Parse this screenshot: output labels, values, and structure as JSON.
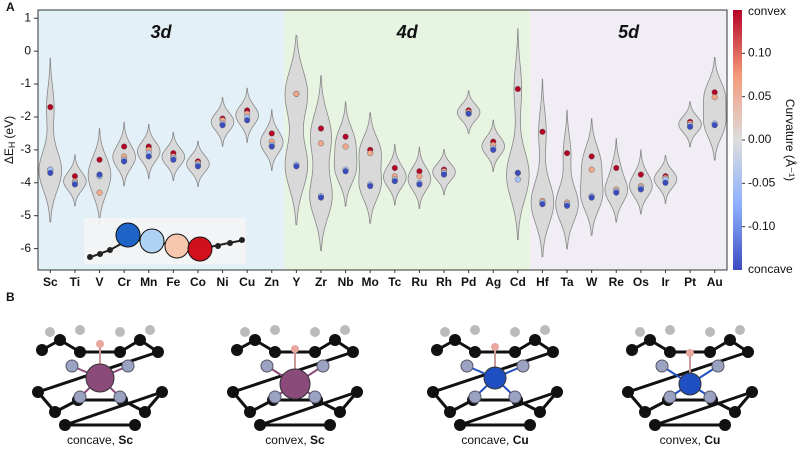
{
  "chart_data": {
    "type": "violin",
    "panel_label": "A",
    "ylabel": {
      "symbol": "ΔE",
      "subscript": "H",
      "unit": "(eV)"
    },
    "ylim": [
      -6.65,
      1.25
    ],
    "yticks": [
      -6,
      -5,
      -4,
      -3,
      -2,
      -1,
      0,
      1
    ],
    "groups": [
      {
        "label": "3d",
        "label_color": "#3a77c4",
        "color": "#e4f0f8",
        "categories": [
          "Sc",
          "Ti",
          "V",
          "Cr",
          "Mn",
          "Fe",
          "Co",
          "Ni",
          "Cu",
          "Zn"
        ]
      },
      {
        "label": "4d",
        "label_color": "#4b7d68",
        "color": "#e7f4e2",
        "categories": [
          "Y",
          "Zr",
          "Nb",
          "Mo",
          "Tc",
          "Ru",
          "Rh",
          "Pd",
          "Ag",
          "Cd"
        ]
      },
      {
        "label": "5d",
        "label_color": "#8c1f4f",
        "color": "#f1edf5",
        "categories": [
          "Hf",
          "Ta",
          "W",
          "Re",
          "Os",
          "Ir",
          "Pt",
          "Au"
        ]
      }
    ],
    "violin_color": "#d9d9d9",
    "series": [
      {
        "color": "#b40426",
        "values": [
          -1.7,
          -3.8,
          -3.3,
          -2.9,
          -2.9,
          -3.1,
          -3.35,
          -2.05,
          -1.8,
          -2.5,
          -1.3,
          -2.35,
          -2.6,
          -3.0,
          -3.55,
          -3.65,
          -3.6,
          -1.8,
          -2.75,
          -1.15,
          -2.45,
          -3.1,
          -3.2,
          -3.55,
          -3.75,
          -3.8,
          -2.15,
          -1.25
        ]
      },
      {
        "color": "#f3a889",
        "values": [
          -3.6,
          -3.95,
          -4.3,
          -3.2,
          -3.0,
          -3.2,
          -3.4,
          -2.1,
          -1.9,
          -2.75,
          -1.3,
          -2.8,
          -2.9,
          -3.1,
          -3.8,
          -3.8,
          -3.65,
          -1.85,
          -2.85,
          -3.7,
          -4.55,
          -4.6,
          -3.6,
          -4.2,
          -4.1,
          -3.85,
          -2.2,
          -1.4
        ]
      },
      {
        "color": "#a5c4fb",
        "values": [
          -3.6,
          -4.0,
          -3.8,
          -3.3,
          -3.1,
          -3.25,
          -3.45,
          -2.2,
          -2.0,
          -2.85,
          -3.45,
          -4.4,
          -3.6,
          -4.05,
          -3.9,
          -4.0,
          -3.7,
          -1.9,
          -2.95,
          -3.9,
          -4.6,
          -4.65,
          -4.4,
          -4.25,
          -4.15,
          -3.9,
          -2.25,
          -2.2
        ]
      },
      {
        "color": "#3b4cc0",
        "values": [
          -3.7,
          -4.05,
          -3.75,
          -3.35,
          -3.2,
          -3.3,
          -3.5,
          -2.25,
          -2.1,
          -2.9,
          -3.5,
          -4.45,
          -3.65,
          -4.1,
          -3.95,
          -4.05,
          -3.75,
          -1.9,
          -3.0,
          -3.7,
          -4.65,
          -4.7,
          -4.45,
          -4.3,
          -4.2,
          -4.0,
          -2.3,
          -2.25
        ]
      }
    ],
    "colorbar": {
      "label": "Curvature (Å⁻¹)",
      "top_label": "convex",
      "bottom_label": "concave",
      "lim": [
        -0.15,
        0.15
      ],
      "colormap": [
        "#3b4cc0",
        "#8db0fe",
        "#dddddd",
        "#f49a7b",
        "#b40426"
      ],
      "ticks": [
        {
          "value": -0.1,
          "label": "-0.10"
        },
        {
          "value": -0.05,
          "label": "-0.05"
        },
        {
          "value": 0,
          "label": "0.00"
        },
        {
          "value": 0.05,
          "label": "0.05"
        },
        {
          "value": 0.1,
          "label": "0.10"
        }
      ]
    }
  },
  "panel_b": {
    "label": "B",
    "captions": [
      {
        "text": "concave, ",
        "element": "Sc"
      },
      {
        "text": "convex, ",
        "element": "Sc"
      },
      {
        "text": "concave, ",
        "element": "Cu"
      },
      {
        "text": "convex, ",
        "element": "Cu"
      }
    ]
  }
}
